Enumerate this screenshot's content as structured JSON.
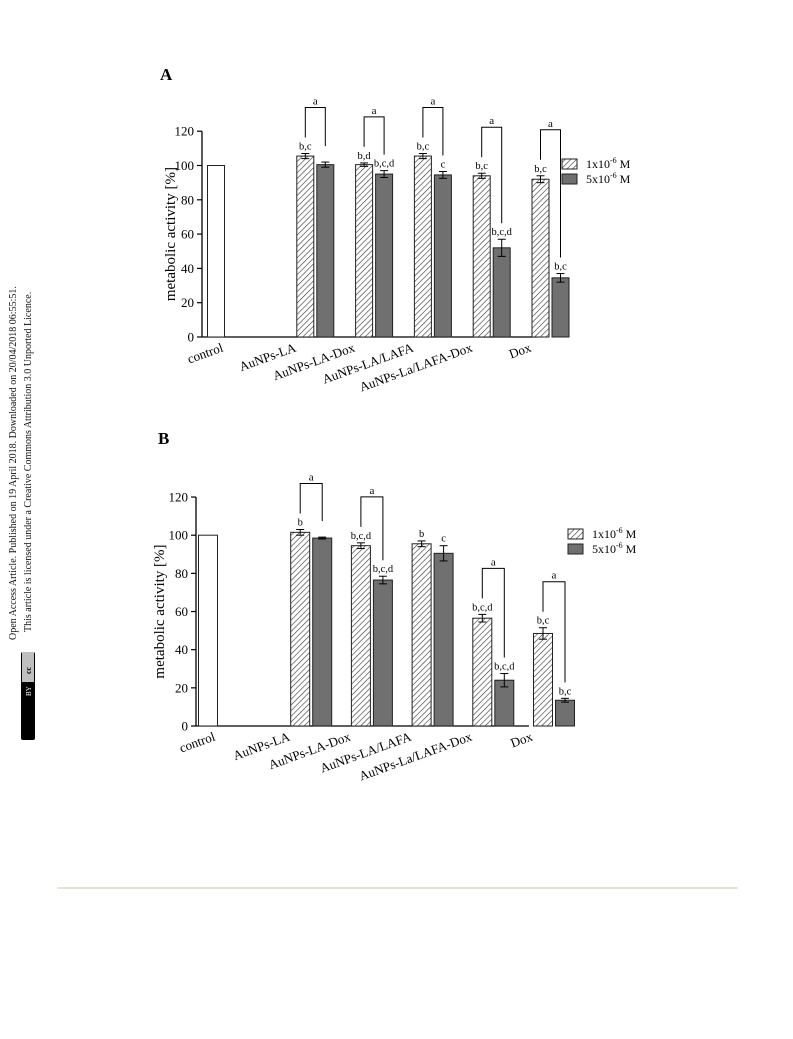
{
  "license_notice": {
    "line1": "Open Access Article. Published on 19 April 2018. Downloaded on 20/04/2018 06:55:51.",
    "line2": "This article is licensed under a Creative Commons Attribution 3.0 Unported Licence.",
    "badge_cc": "cc",
    "badge_by": "BY"
  },
  "colors": {
    "hatched_fill": "#ffffff",
    "hatch_stroke": "#333333",
    "solid_fill": "#707070",
    "control_fill": "#ffffff",
    "footer_rule": "#e4e2d8"
  },
  "chart_data": [
    {
      "panel_label": "A",
      "type": "bar",
      "ylabel": "metabolic activity [%]",
      "ylim": [
        0,
        120
      ],
      "yticks": [
        "0",
        "20",
        "40",
        "60",
        "80",
        "100",
        "120"
      ],
      "categories": [
        "control",
        "AuNPs-LA",
        "AuNPs-LA-Dox",
        "AuNPs-LA/LAFA",
        "AuNPs-La/LAFA-Dox",
        "Dox"
      ],
      "legend": {
        "items": [
          "1x10",
          "5x10"
        ],
        "exponent": "-6",
        "unit": "M",
        "position": "right"
      },
      "control_value": 100,
      "series": [
        {
          "name": "1x10-6 M",
          "values": [
            null,
            105.5,
            100.5,
            105.5,
            94,
            92
          ],
          "errors": [
            null,
            1.5,
            1,
            1.5,
            1.5,
            2
          ],
          "annotations": [
            "",
            "b,c",
            "b,d",
            "b,c",
            "b,c",
            "b,c"
          ]
        },
        {
          "name": "5x10-6 M",
          "values": [
            null,
            100.5,
            95,
            94.5,
            52,
            34.5
          ],
          "errors": [
            null,
            1.5,
            2,
            2,
            5,
            2.5
          ],
          "annotations": [
            "",
            "",
            "b,c,d",
            "c",
            "b,c,d",
            "b,c"
          ]
        }
      ],
      "brackets": [
        {
          "category": 1,
          "label": "a"
        },
        {
          "category": 2,
          "label": "a"
        },
        {
          "category": 3,
          "label": "a"
        },
        {
          "category": 4,
          "label": "a"
        },
        {
          "category": 5,
          "label": "a"
        }
      ]
    },
    {
      "panel_label": "B",
      "type": "bar",
      "ylabel": "metabolic activity [%]",
      "ylim": [
        0,
        120
      ],
      "yticks": [
        "0",
        "20",
        "40",
        "60",
        "80",
        "100",
        "120"
      ],
      "categories": [
        "control",
        "AuNPs-LA",
        "AuNPs-LA-Dox",
        "AuNPs-LA/LAFA",
        "AuNPs-La/LAFA-Dox",
        "Dox"
      ],
      "legend": {
        "items": [
          "1x10",
          "5x10"
        ],
        "exponent": "-6",
        "unit": "M",
        "position": "right"
      },
      "control_value": 100,
      "series": [
        {
          "name": "1x10-6 M",
          "values": [
            null,
            101.5,
            94.5,
            95.5,
            56.5,
            48.5
          ],
          "errors": [
            null,
            1.5,
            1.5,
            1.5,
            2,
            3
          ],
          "annotations": [
            "",
            "b",
            "b,c,d",
            "b",
            "b,c,d",
            "b,c"
          ]
        },
        {
          "name": "5x10-6 M",
          "values": [
            null,
            98.5,
            76.5,
            90.5,
            24,
            13.5
          ],
          "errors": [
            null,
            0.5,
            2,
            4,
            3.5,
            1
          ],
          "annotations": [
            "",
            "",
            "b,c,d",
            "c",
            "b,c,d",
            "b,c"
          ]
        }
      ],
      "brackets": [
        {
          "category": 1,
          "label": "a"
        },
        {
          "category": 2,
          "label": "a"
        },
        {
          "category": 4,
          "label": "a"
        },
        {
          "category": 5,
          "label": "a"
        }
      ]
    }
  ]
}
